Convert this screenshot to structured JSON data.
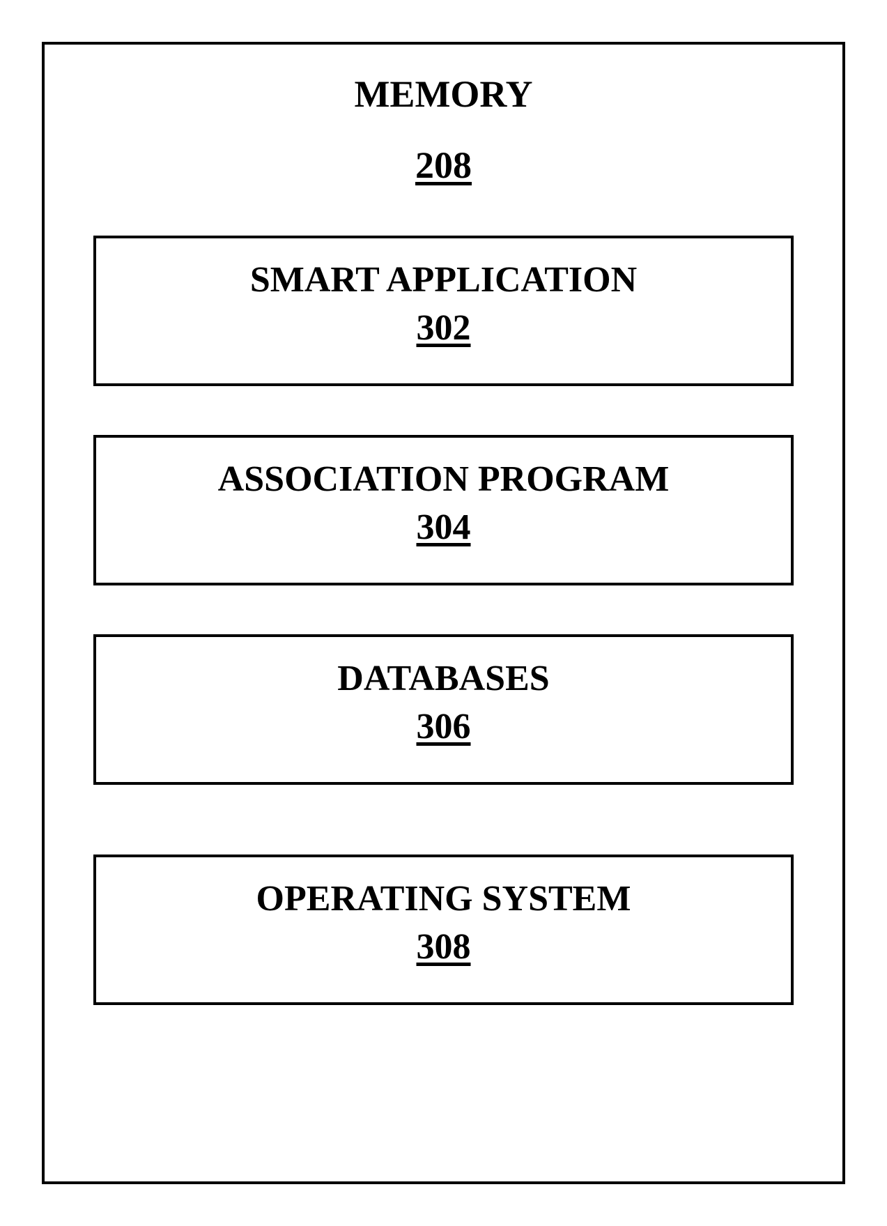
{
  "diagram": {
    "type": "block-diagram",
    "outer_border_color": "#000000",
    "outer_border_width": 4,
    "inner_border_color": "#000000",
    "inner_border_width": 4,
    "background_color": "#ffffff",
    "text_color": "#000000",
    "font_family": "Times New Roman",
    "title_fontsize": 54,
    "inner_fontsize": 52,
    "font_weight": "bold",
    "container": {
      "title": "MEMORY",
      "ref": "208"
    },
    "blocks": [
      {
        "title": "SMART APPLICATION",
        "ref": "302"
      },
      {
        "title": "ASSOCIATION PROGRAM",
        "ref": "304"
      },
      {
        "title": "DATABASES",
        "ref": "306"
      },
      {
        "title": "OPERATING SYSTEM",
        "ref": "308"
      }
    ]
  }
}
